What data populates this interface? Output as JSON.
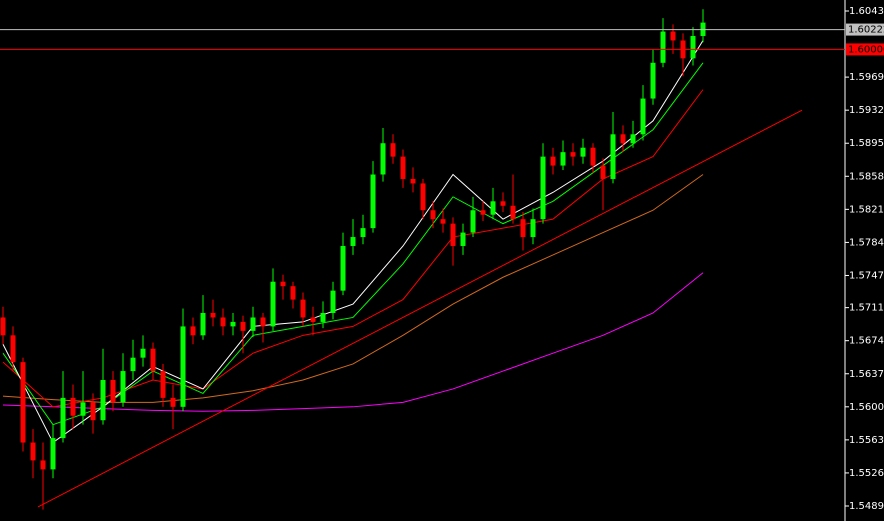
{
  "chart_data": {
    "type": "candlestick",
    "up_color": "#00ff00",
    "down_color": "#ff0000",
    "xlim": [
      -0.3,
      84.2
    ],
    "ylim": [
      1.54722,
      1.60553
    ],
    "yticks": [
      {
        "value": 1.6043,
        "label": "1.60430"
      },
      {
        "value": 1.5969,
        "label": "1.59690"
      },
      {
        "value": 1.5932,
        "label": "1.59320"
      },
      {
        "value": 1.5895,
        "label": "1.58950"
      },
      {
        "value": 1.5858,
        "label": "1.58580"
      },
      {
        "value": 1.5821,
        "label": "1.58210"
      },
      {
        "value": 1.5784,
        "label": "1.57840"
      },
      {
        "value": 1.5747,
        "label": "1.57470"
      },
      {
        "value": 1.5711,
        "label": "1.57110"
      },
      {
        "value": 1.5674,
        "label": "1.56740"
      },
      {
        "value": 1.5637,
        "label": "1.56370"
      },
      {
        "value": 1.56,
        "label": "1.56000"
      },
      {
        "value": 1.5563,
        "label": "1.55630"
      },
      {
        "value": 1.5526,
        "label": "1.55260"
      },
      {
        "value": 1.5489,
        "label": "1.54890"
      }
    ],
    "candles": [
      [
        1.57,
        1.5712,
        1.567,
        1.568
      ],
      [
        1.568,
        1.569,
        1.564,
        1.565
      ],
      [
        1.565,
        1.5655,
        1.555,
        1.556
      ],
      [
        1.556,
        1.5575,
        1.552,
        1.554
      ],
      [
        1.554,
        1.556,
        1.5485,
        1.553
      ],
      [
        1.553,
        1.558,
        1.552,
        1.5565
      ],
      [
        1.5565,
        1.564,
        1.556,
        1.561
      ],
      [
        1.561,
        1.5625,
        1.5575,
        1.559
      ],
      [
        1.559,
        1.564,
        1.558,
        1.5605
      ],
      [
        1.5605,
        1.5615,
        1.557,
        1.5585
      ],
      [
        1.5585,
        1.5665,
        1.558,
        1.563
      ],
      [
        1.563,
        1.564,
        1.5595,
        1.5605
      ],
      [
        1.5605,
        1.566,
        1.56,
        1.564
      ],
      [
        1.564,
        1.5675,
        1.563,
        1.5655
      ],
      [
        1.5655,
        1.568,
        1.5645,
        1.5665
      ],
      [
        1.5665,
        1.5672,
        1.563,
        1.564
      ],
      [
        1.564,
        1.5648,
        1.56,
        1.561
      ],
      [
        1.561,
        1.5625,
        1.5575,
        1.56
      ],
      [
        1.56,
        1.571,
        1.5595,
        1.569
      ],
      [
        1.569,
        1.57,
        1.567,
        1.568
      ],
      [
        1.568,
        1.5725,
        1.5675,
        1.5705
      ],
      [
        1.5705,
        1.572,
        1.569,
        1.57
      ],
      [
        1.57,
        1.571,
        1.568,
        1.569
      ],
      [
        1.569,
        1.5705,
        1.568,
        1.5695
      ],
      [
        1.5695,
        1.5702,
        1.566,
        1.5685
      ],
      [
        1.5685,
        1.5712,
        1.5678,
        1.57
      ],
      [
        1.57,
        1.5705,
        1.5672,
        1.569
      ],
      [
        1.569,
        1.5755,
        1.5685,
        1.574
      ],
      [
        1.574,
        1.5748,
        1.572,
        1.5735
      ],
      [
        1.5735,
        1.574,
        1.571,
        1.572
      ],
      [
        1.572,
        1.5728,
        1.569,
        1.57
      ],
      [
        1.57,
        1.5712,
        1.568,
        1.5695
      ],
      [
        1.5695,
        1.5718,
        1.5688,
        1.5705
      ],
      [
        1.5705,
        1.574,
        1.5698,
        1.573
      ],
      [
        1.573,
        1.5795,
        1.5725,
        1.578
      ],
      [
        1.578,
        1.581,
        1.577,
        1.579
      ],
      [
        1.579,
        1.5815,
        1.5782,
        1.58
      ],
      [
        1.58,
        1.5875,
        1.5795,
        1.586
      ],
      [
        1.586,
        1.5912,
        1.5852,
        1.5895
      ],
      [
        1.5895,
        1.5905,
        1.5872,
        1.588
      ],
      [
        1.588,
        1.5888,
        1.5845,
        1.5855
      ],
      [
        1.5855,
        1.5868,
        1.584,
        1.585
      ],
      [
        1.585,
        1.5855,
        1.581,
        1.582
      ],
      [
        1.582,
        1.583,
        1.58,
        1.581
      ],
      [
        1.581,
        1.5822,
        1.5795,
        1.5805
      ],
      [
        1.5805,
        1.5812,
        1.5758,
        1.578
      ],
      [
        1.578,
        1.5805,
        1.577,
        1.5795
      ],
      [
        1.5795,
        1.5835,
        1.579,
        1.582
      ],
      [
        1.582,
        1.583,
        1.5808,
        1.5815
      ],
      [
        1.5815,
        1.5845,
        1.581,
        1.583
      ],
      [
        1.583,
        1.584,
        1.5818,
        1.5825
      ],
      [
        1.5825,
        1.586,
        1.5805,
        1.581
      ],
      [
        1.581,
        1.5818,
        1.5775,
        1.579
      ],
      [
        1.579,
        1.5822,
        1.5782,
        1.581
      ],
      [
        1.581,
        1.5895,
        1.5805,
        1.588
      ],
      [
        1.588,
        1.589,
        1.586,
        1.587
      ],
      [
        1.587,
        1.5898,
        1.5865,
        1.5885
      ],
      [
        1.5885,
        1.5895,
        1.587,
        1.588
      ],
      [
        1.588,
        1.59,
        1.5872,
        1.589
      ],
      [
        1.589,
        1.5895,
        1.5862,
        1.587
      ],
      [
        1.587,
        1.5878,
        1.582,
        1.5855
      ],
      [
        1.5855,
        1.593,
        1.585,
        1.5905
      ],
      [
        1.5905,
        1.5915,
        1.5885,
        1.5895
      ],
      [
        1.5895,
        1.592,
        1.589,
        1.5905
      ],
      [
        1.5905,
        1.596,
        1.5898,
        1.5945
      ],
      [
        1.5945,
        1.6,
        1.5938,
        1.5985
      ],
      [
        1.5985,
        1.6035,
        1.598,
        1.602
      ],
      [
        1.602,
        1.6028,
        1.5995,
        1.601
      ],
      [
        1.601,
        1.6018,
        1.597,
        1.599
      ],
      [
        1.599,
        1.6025,
        1.5982,
        1.6015
      ],
      [
        1.6015,
        1.6045,
        1.6008,
        1.603
      ]
    ],
    "series": [
      {
        "color": "#ff00ff",
        "x": [
          0,
          5,
          10,
          15,
          20,
          25,
          30,
          35,
          40,
          45,
          50,
          55,
          60,
          65,
          70
        ],
        "values": [
          1.5602,
          1.56,
          1.5598,
          1.5596,
          1.5595,
          1.5596,
          1.5598,
          1.56,
          1.5605,
          1.562,
          1.564,
          1.566,
          1.568,
          1.5705,
          1.575
        ]
      },
      {
        "color": "#d2691e",
        "x": [
          0,
          5,
          10,
          15,
          20,
          25,
          30,
          35,
          40,
          45,
          50,
          55,
          60,
          65,
          70
        ],
        "values": [
          1.5612,
          1.5608,
          1.5605,
          1.5605,
          1.561,
          1.5618,
          1.563,
          1.5648,
          1.568,
          1.5715,
          1.5745,
          1.577,
          1.5795,
          1.582,
          1.586
        ]
      },
      {
        "color": "#ff0000",
        "x": [
          0,
          5,
          10,
          15,
          20,
          25,
          30,
          35,
          40,
          45,
          50,
          55,
          60,
          65,
          70
        ],
        "values": [
          1.565,
          1.56,
          1.561,
          1.563,
          1.562,
          1.566,
          1.568,
          1.569,
          1.572,
          1.579,
          1.58,
          1.581,
          1.5855,
          1.588,
          1.5955
        ]
      },
      {
        "color": "#00ff00",
        "x": [
          0,
          5,
          10,
          15,
          20,
          25,
          30,
          35,
          40,
          45,
          50,
          55,
          60,
          65,
          70
        ],
        "values": [
          1.566,
          1.558,
          1.56,
          1.564,
          1.5615,
          1.568,
          1.569,
          1.57,
          1.576,
          1.5835,
          1.5805,
          1.583,
          1.587,
          1.591,
          1.5985
        ]
      },
      {
        "color": "#ffffff",
        "x": [
          0,
          5,
          10,
          15,
          20,
          25,
          30,
          35,
          40,
          45,
          50,
          55,
          60,
          65,
          70
        ],
        "values": [
          1.567,
          1.556,
          1.56,
          1.5645,
          1.562,
          1.569,
          1.5695,
          1.5715,
          1.578,
          1.586,
          1.581,
          1.584,
          1.5875,
          1.592,
          1.601
        ]
      }
    ],
    "trendline": {
      "color": "#ff0000",
      "x": [
        3.5,
        79.9
      ],
      "values": [
        1.5488,
        1.5932
      ]
    },
    "levels": [
      {
        "value": 1.60222,
        "label": "1.60222",
        "color": "#c0c0c0"
      },
      {
        "value": 1.6,
        "label": "1.60000",
        "color": "#ff0000"
      }
    ]
  }
}
